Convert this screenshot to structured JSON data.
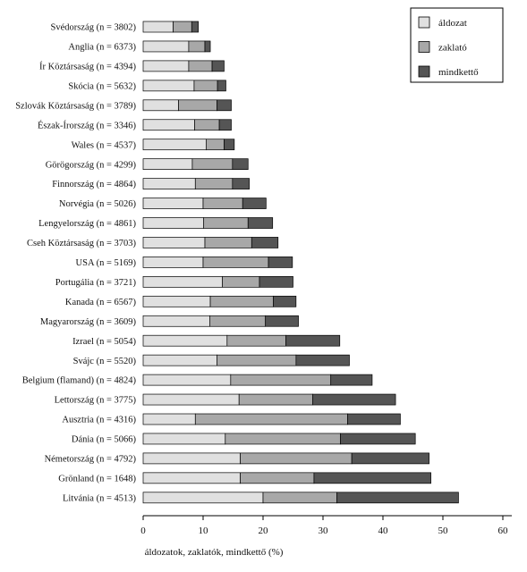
{
  "chart_data": {
    "type": "bar",
    "orientation": "horizontal",
    "stacked": true,
    "categories": [
      "Svédország (n = 3802)",
      "Anglia (n = 6373)",
      "Ír Köztársaság (n = 4394)",
      "Skócia (n = 5632)",
      "Szlovák Köztársaság (n = 3789)",
      "Észak-Írország (n = 3346)",
      "Wales (n = 4537)",
      "Görögország (n = 4299)",
      "Finnország (n = 4864)",
      "Norvégia (n = 5026)",
      "Lengyelország (n = 4861)",
      "Cseh Köztársaság (n = 3703)",
      "USA (n = 5169)",
      "Portugália (n = 3721)",
      "Kanada (n = 6567)",
      "Magyarország (n = 3609)",
      "Izrael (n = 5054)",
      "Svájc (n = 5520)",
      "Belgium (flamand) (n = 4824)",
      "Lettország (n = 3775)",
      "Ausztria (n = 4316)",
      "Dánia (n = 5066)",
      "Németország (n = 4792)",
      "Grönland (n = 1648)",
      "Litvánia (n = 4513)"
    ],
    "series": [
      {
        "name": "áldozat",
        "color": "#e0e0e0",
        "values": [
          5.0,
          7.6,
          7.6,
          8.5,
          5.9,
          8.6,
          10.5,
          8.2,
          8.7,
          10.0,
          10.1,
          10.3,
          10.0,
          13.2,
          11.2,
          11.1,
          14.0,
          12.3,
          14.6,
          16.0,
          8.7,
          13.7,
          16.2,
          16.2,
          20.0
        ]
      },
      {
        "name": "zaklató",
        "color": "#a8a8a8",
        "values": [
          3.1,
          2.7,
          3.9,
          3.9,
          6.4,
          4.1,
          3.0,
          6.7,
          6.2,
          6.6,
          7.4,
          7.8,
          10.9,
          6.2,
          10.5,
          9.3,
          9.8,
          13.2,
          16.7,
          12.3,
          25.4,
          19.2,
          18.6,
          12.3,
          12.3
        ]
      },
      {
        "name": "mindkettő",
        "color": "#555555",
        "values": [
          1.1,
          0.9,
          2.0,
          1.4,
          2.4,
          2.0,
          1.7,
          2.6,
          2.8,
          3.9,
          4.1,
          4.4,
          4.0,
          5.6,
          3.8,
          5.5,
          9.0,
          8.9,
          6.9,
          13.8,
          8.8,
          12.5,
          12.9,
          19.5,
          20.3
        ]
      }
    ],
    "xlabel": "áldozatok, zaklatók, mindkettő (%)",
    "ylabel": "",
    "xlim": [
      0,
      62
    ],
    "xticks": [
      0,
      10,
      20,
      30,
      40,
      50,
      60
    ],
    "grid": false,
    "legend_position": "top-right"
  }
}
